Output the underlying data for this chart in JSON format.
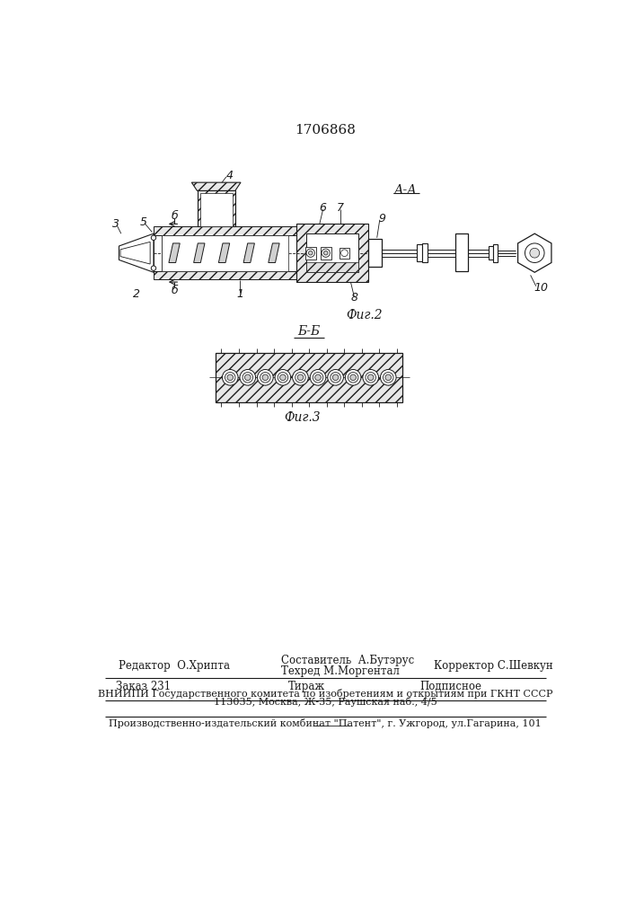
{
  "patent_number": "1706868",
  "fig2_label": "Фиг.2",
  "fig3_label": "Фиг.3",
  "section_aa": "А-А",
  "section_bb": "Б-Б",
  "editor_line": "Редактор  О.Хрипта",
  "composer_line1": "Составитель  А.Бутэрус",
  "techred_line": "Техред М.Моргентал",
  "corrector_line": "Корректор С.Шевкун",
  "order_line": "Заказ 231",
  "tirazh_line": "Тираж",
  "podpisnoe_line": "Подписное",
  "vniiipi_line": "ВНИИПИ Государственного комитета по изобретениям и открытиям при ГКНТ СССР",
  "address_line": "113035, Москва, Ж-35, Раушская наб., 4/5",
  "production_line": "Производственно-издательский комбинат \"Патент\", г. Ужгород, ул.Гагарина, 101",
  "bg_color": "#ffffff",
  "line_color": "#1a1a1a"
}
